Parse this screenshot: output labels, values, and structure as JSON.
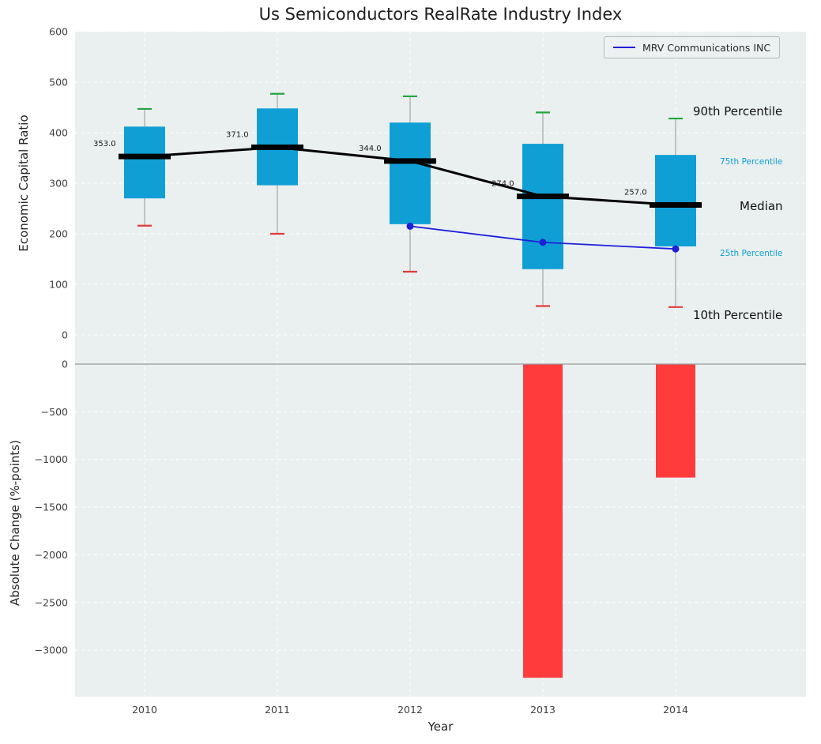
{
  "figure": {
    "title": "Us Semiconductors RealRate Industry Index",
    "top_ylabel": "Economic Capital Ratio",
    "bottom_ylabel": "Absolute Change (%-points)",
    "xlabel": "Year",
    "legend": {
      "label": "MRV Communications INC"
    },
    "annotations": {
      "p90": "90th Percentile",
      "p75": "75th Percentile",
      "median": "Median",
      "p25": "25th Percentile",
      "p10": "10th Percentile"
    }
  },
  "chart_data": [
    {
      "type": "boxwhisker",
      "title": "Us Semiconductors RealRate Industry Index",
      "ylabel": "Economic Capital Ratio",
      "categories": [
        "2010",
        "2011",
        "2012",
        "2013",
        "2014"
      ],
      "ylim": [
        -20,
        600
      ],
      "yticks": [
        600,
        500,
        400,
        300,
        200,
        100,
        0
      ],
      "grid": true,
      "legend_position": "upper right",
      "series": [
        {
          "name": "90th Percentile",
          "values": [
            447,
            477,
            472,
            440,
            428
          ]
        },
        {
          "name": "75th Percentile",
          "values": [
            412,
            448,
            420,
            378,
            356
          ]
        },
        {
          "name": "Median",
          "values": [
            353,
            371,
            344,
            274,
            257
          ]
        },
        {
          "name": "25th Percentile",
          "values": [
            270,
            296,
            219,
            130,
            175
          ]
        },
        {
          "name": "10th Percentile",
          "values": [
            216,
            200,
            125,
            57,
            55
          ]
        }
      ],
      "median_labels": [
        "353.0",
        "371.0",
        "344.0",
        "274.0",
        "257.0"
      ],
      "company_line": {
        "name": "MRV Communications INC",
        "categories": [
          "2012",
          "2013",
          "2014"
        ],
        "values": [
          215,
          183,
          170
        ]
      },
      "colors": {
        "box": "#0f9fd4",
        "median": "#000000",
        "p90_cap": "#22a63c",
        "p10_cap": "#e23b3b",
        "company": "#1f1fd9",
        "whisker": "#999999",
        "background": "#eaeff0",
        "gridline": "#ffffff"
      }
    },
    {
      "type": "bar",
      "ylabel": "Absolute Change (%-points)",
      "xlabel": "Year",
      "categories": [
        "2010",
        "2011",
        "2012",
        "2013",
        "2014"
      ],
      "values": [
        null,
        null,
        null,
        -3290,
        -1190
      ],
      "ylim": [
        -3500,
        210
      ],
      "yticks": [
        0,
        -500,
        -1000,
        -1500,
        -2000,
        -2500,
        -3000
      ],
      "bar_color": "#ff3b3b",
      "zero_line_color": "#999999"
    }
  ]
}
